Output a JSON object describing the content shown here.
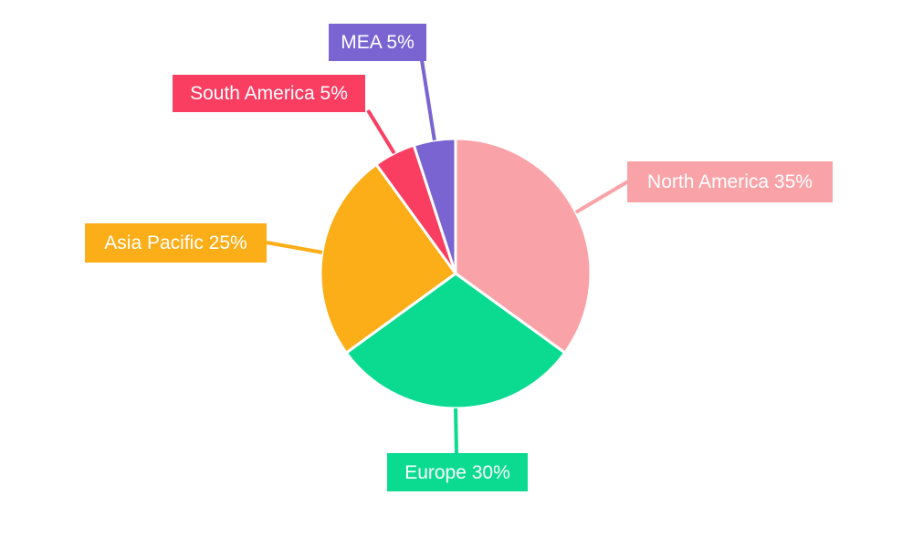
{
  "chart_data": {
    "type": "pie",
    "title": "",
    "legend": "none",
    "labels_position": "outside-callouts",
    "start_angle": "top",
    "direction": "clockwise",
    "unit": "%",
    "categories": [
      "North America",
      "Europe",
      "Asia Pacific",
      "South America",
      "MEA"
    ],
    "values": [
      35,
      30,
      25,
      5,
      5
    ],
    "slices": [
      {
        "label": "North America",
        "value": 35,
        "display": "North America 35%",
        "color": "#F9A3A9"
      },
      {
        "label": "Europe",
        "value": 30,
        "display": "Europe 30%",
        "color": "#0ADB91"
      },
      {
        "label": "Asia Pacific",
        "value": 25,
        "display": "Asia Pacific 25%",
        "color": "#FBAE17"
      },
      {
        "label": "South America",
        "value": 5,
        "display": "South America 5%",
        "color": "#FA3E62"
      },
      {
        "label": "MEA",
        "value": 5,
        "display": "MEA 5%",
        "color": "#7A64D1"
      }
    ]
  }
}
